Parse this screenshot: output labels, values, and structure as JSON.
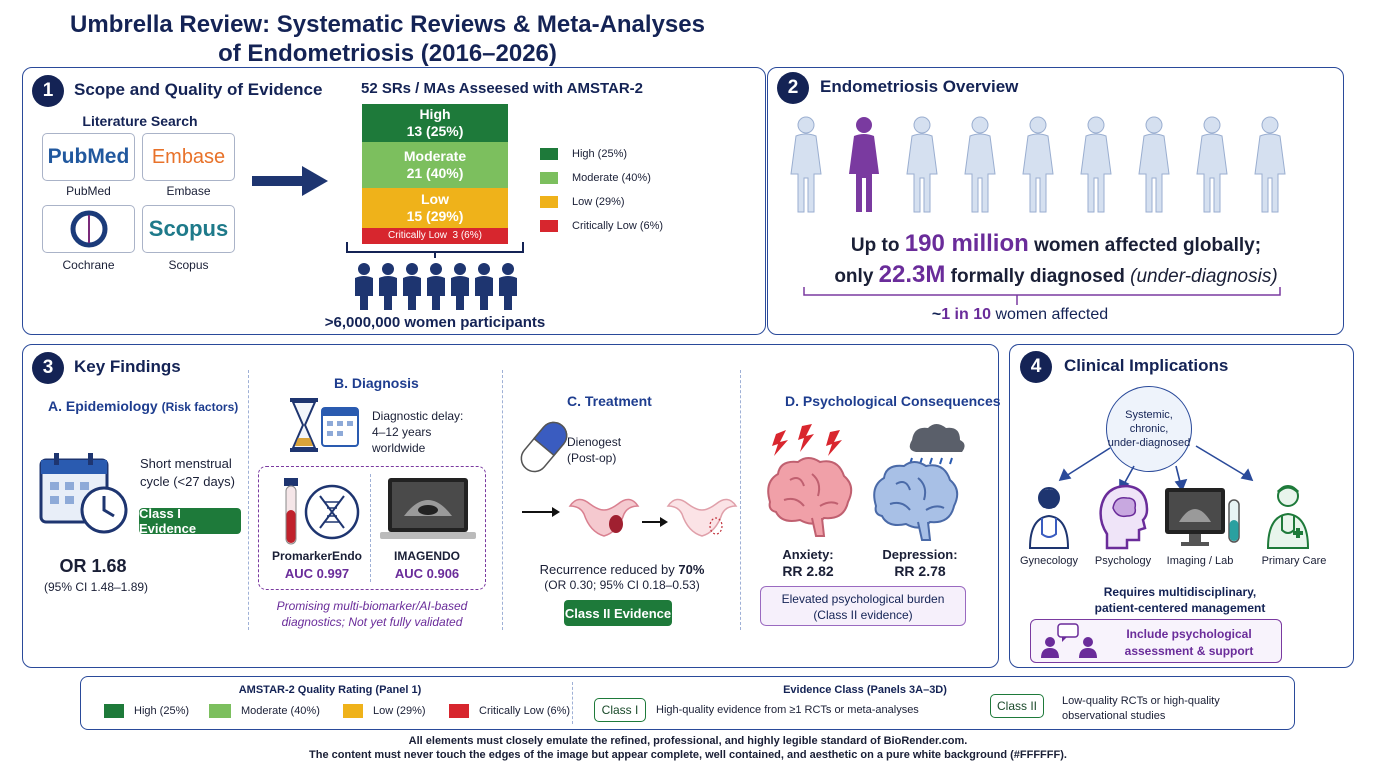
{
  "title": {
    "line1": "Umbrella Review: Systematic Reviews & Meta-Analyses",
    "line2": "of Endometriosis (2016–2026)"
  },
  "panel1": {
    "number": "1",
    "title": "Scope and Quality of Evidence",
    "search_label": "Literature Search",
    "databases": [
      "PubMed",
      "Embase",
      "Cochrane",
      "Scopus"
    ],
    "logo_pubmed": "PubMed",
    "logo_embase": "Embase",
    "logo_scopus": "Scopus",
    "amstar_title": "52 SRs / MAs Asseesed with AMSTAR-2",
    "bars": [
      {
        "label": "High",
        "value": "13 (25%)",
        "color": "#1e7a3a"
      },
      {
        "label": "Moderate",
        "value": "21 (40%)",
        "color": "#7cbf5e"
      },
      {
        "label": "Low",
        "value": "15 (29%)",
        "color": "#efb21a"
      },
      {
        "label": "Critically Low",
        "value": "3 (6%)",
        "color": "#d7262e"
      }
    ],
    "legend": [
      "High (25%)",
      "Moderate (40%)",
      "Low (29%)",
      "Critically Low (6%)"
    ],
    "participants": ">6,000,000 women participants"
  },
  "panel2": {
    "number": "2",
    "title": "Endometriosis Overview",
    "line1_pre": "Up to ",
    "line1_num": "190 million",
    "line1_post": " women affected globally;",
    "line2_pre": "only ",
    "line2_num": "22.3M",
    "line2_mid": " formally diagnosed ",
    "line2_italic": "(under-diagnosis)",
    "ratio_pre": "~",
    "ratio_num": "1 in 10",
    "ratio_post": " women affected"
  },
  "panel3": {
    "number": "3",
    "title": "Key Findings",
    "a": {
      "title": "A. Epidemiology",
      "title_small": "(Risk factors)",
      "text1": "Short menstrual",
      "text2": "cycle (<27 days)",
      "badge": "Class I Evidence",
      "or": "OR 1.68",
      "ci": "(95% CI 1.48–1.89)"
    },
    "b": {
      "title": "B. Diagnosis",
      "delay1": "Diagnostic delay:",
      "delay2": "4–12 years",
      "delay3": "worldwide",
      "test1_name": "PromarkerEndo",
      "test1_auc": "AUC 0.997",
      "test2_name": "IMAGENDO",
      "test2_auc": "AUC 0.906",
      "note1": "Promising multi-biomarker/AI-based",
      "note2": "diagnostics; Not yet fully validated"
    },
    "c": {
      "title": "C. Treatment",
      "drug1": "Dienogest",
      "drug2": "(Post-op)",
      "result_pre": "Recurrence reduced by ",
      "result_num": "70%",
      "result_ci": "(OR 0.30; 95% CI 0.18–0.53)",
      "badge": "Class II Evidence"
    },
    "d": {
      "title": "D. Psychological Consequences",
      "anx_label": "Anxiety:",
      "anx_rr": "RR 2.82",
      "dep_label": "Depression:",
      "dep_rr": "RR 2.78",
      "box1": "Elevated psychological burden",
      "box2": "(Class II evidence)"
    }
  },
  "panel4": {
    "number": "4",
    "title": "Clinical Implications",
    "center1": "Systemic,",
    "center2": "chronic,",
    "center3": "under-diagnosed",
    "roles": [
      "Gynecology",
      "Psychology",
      "Imaging / Lab",
      "Primary Care"
    ],
    "req1": "Requires multidisciplinary,",
    "req2": "patient-centered management",
    "incl1": "Include psychological",
    "incl2": "assessment & support"
  },
  "legend_bar": {
    "amstar_title": "AMSTAR-2 Quality Rating (Panel 1)",
    "items": [
      "High (25%)",
      "Moderate (40%)",
      "Low (29%)",
      "Critically Low (6%)"
    ],
    "colors": [
      "#1e7a3a",
      "#7cbf5e",
      "#efb21a",
      "#d7262e"
    ],
    "class_title": "Evidence Class (Panels 3A–3D)",
    "class1": "Class I",
    "class1_desc": "High-quality evidence from ≥1 RCTs or meta-analyses",
    "class2": "Class II",
    "class2_desc1": "Low-quality RCTs or high-quality",
    "class2_desc2": "observational studies"
  },
  "footer": {
    "line1": "All elements must closely emulate the refined, professional, and highly legible standard of BioRender.com.",
    "line2": "The content must never touch the edges of the image but appear complete, well contained, and aesthetic on a pure white background (#FFFFFF)."
  }
}
